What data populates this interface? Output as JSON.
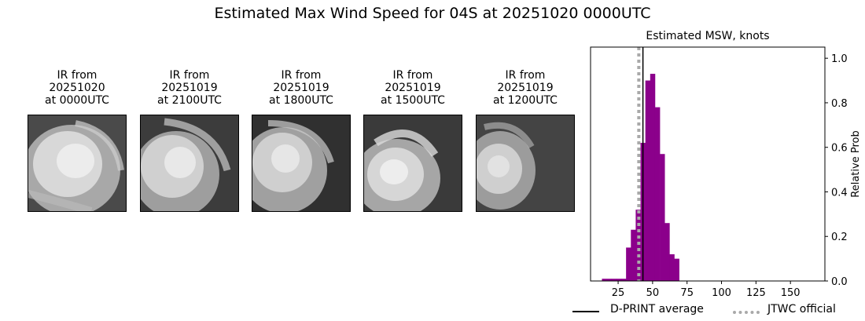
{
  "title": "Estimated Max Wind Speed for 04S at 20251020 0000UTC",
  "panels": [
    {
      "line1": "IR from",
      "line2": "20251020",
      "line3": "at 0000UTC"
    },
    {
      "line1": "IR from",
      "line2": "20251019",
      "line3": "at 2100UTC"
    },
    {
      "line1": "IR from",
      "line2": "20251019",
      "line3": "at 1800UTC"
    },
    {
      "line1": "IR from",
      "line2": "20251019",
      "line3": "at 1500UTC"
    },
    {
      "line1": "IR from",
      "line2": "20251019",
      "line3": "at 1200UTC"
    }
  ],
  "legend": {
    "dprint": "D-PRINT average",
    "jtwc": "JTWC official"
  },
  "chart_data": {
    "type": "bar",
    "title": "Estimated MSW, knots",
    "xlabel": "",
    "ylabel": "Relative Prob",
    "xlim": [
      5,
      175
    ],
    "ylim": [
      0,
      1.05
    ],
    "xticks": [
      25,
      50,
      75,
      100,
      125,
      150
    ],
    "yticks": [
      0.0,
      0.2,
      0.4,
      0.6,
      0.8,
      1.0
    ],
    "ytick_labels": [
      "0.0",
      "0.2",
      "0.4",
      "0.6",
      "0.8",
      "1.0"
    ],
    "y_axis_side": "right",
    "bin_width": 3.5,
    "bins": [
      {
        "x": 15,
        "value": 0.01
      },
      {
        "x": 18.5,
        "value": 0.01
      },
      {
        "x": 22,
        "value": 0.01
      },
      {
        "x": 25.5,
        "value": 0.01
      },
      {
        "x": 29,
        "value": 0.01
      },
      {
        "x": 32.5,
        "value": 0.15
      },
      {
        "x": 36,
        "value": 0.23
      },
      {
        "x": 39.5,
        "value": 0.32
      },
      {
        "x": 43,
        "value": 0.62
      },
      {
        "x": 46.5,
        "value": 0.9
      },
      {
        "x": 50,
        "value": 0.93
      },
      {
        "x": 53.5,
        "value": 0.78
      },
      {
        "x": 57,
        "value": 0.57
      },
      {
        "x": 60.5,
        "value": 0.26
      },
      {
        "x": 64,
        "value": 0.12
      },
      {
        "x": 67.5,
        "value": 0.1
      }
    ],
    "bar_color": "#8b008b",
    "dprint_average": 43,
    "jtwc_official": 40,
    "dprint_color": "#000000",
    "jtwc_color": "#a9a9a9"
  }
}
